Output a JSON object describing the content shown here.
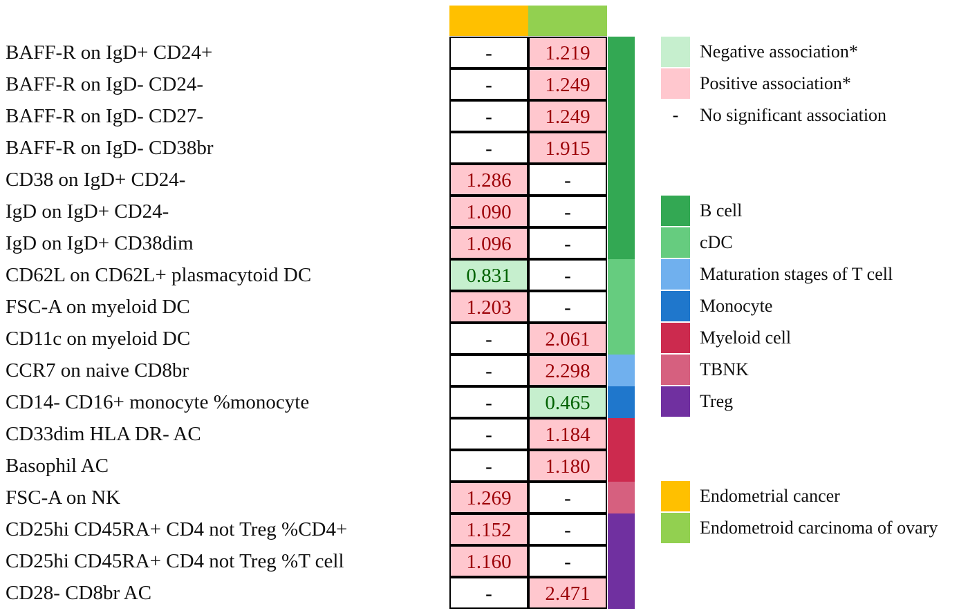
{
  "chart_data": {
    "type": "table",
    "title": "",
    "columns": [
      "Endometrial cancer",
      "Endometroid carcinoma of ovary"
    ],
    "column_colors": [
      "#ffc000",
      "#92d050"
    ],
    "rows": [
      {
        "label": "BAFF-R on IgD+ CD24+",
        "values": [
          "-",
          "1.219"
        ],
        "assoc": [
          "none",
          "pos"
        ],
        "category": "B cell"
      },
      {
        "label": "BAFF-R on IgD- CD24-",
        "values": [
          "-",
          "1.249"
        ],
        "assoc": [
          "none",
          "pos"
        ],
        "category": "B cell"
      },
      {
        "label": "BAFF-R on IgD- CD27-",
        "values": [
          "-",
          "1.249"
        ],
        "assoc": [
          "none",
          "pos"
        ],
        "category": "B cell"
      },
      {
        "label": "BAFF-R on IgD- CD38br",
        "values": [
          "-",
          "1.915"
        ],
        "assoc": [
          "none",
          "pos"
        ],
        "category": "B cell"
      },
      {
        "label": "CD38 on IgD+ CD24-",
        "values": [
          "1.286",
          "-"
        ],
        "assoc": [
          "pos",
          "none"
        ],
        "category": "B cell"
      },
      {
        "label": "IgD on IgD+ CD24-",
        "values": [
          "1.090",
          "-"
        ],
        "assoc": [
          "pos",
          "none"
        ],
        "category": "B cell"
      },
      {
        "label": "IgD on IgD+ CD38dim",
        "values": [
          "1.096",
          "-"
        ],
        "assoc": [
          "pos",
          "none"
        ],
        "category": "B cell"
      },
      {
        "label": "CD62L on CD62L+ plasmacytoid DC",
        "values": [
          "0.831",
          "-"
        ],
        "assoc": [
          "neg",
          "none"
        ],
        "category": "cDC"
      },
      {
        "label": "FSC-A on myeloid DC",
        "values": [
          "1.203",
          "-"
        ],
        "assoc": [
          "pos",
          "none"
        ],
        "category": "cDC"
      },
      {
        "label": "CD11c on myeloid DC",
        "values": [
          "-",
          "2.061"
        ],
        "assoc": [
          "none",
          "pos"
        ],
        "category": "cDC"
      },
      {
        "label": "CCR7 on naive CD8br",
        "values": [
          "-",
          "2.298"
        ],
        "assoc": [
          "none",
          "pos"
        ],
        "category": "Maturation stages of T cell"
      },
      {
        "label": "CD14- CD16+ monocyte %monocyte",
        "values": [
          "-",
          "0.465"
        ],
        "assoc": [
          "none",
          "neg"
        ],
        "category": "Monocyte"
      },
      {
        "label": "CD33dim HLA DR- AC",
        "values": [
          "-",
          "1.184"
        ],
        "assoc": [
          "none",
          "pos"
        ],
        "category": "Myeloid cell"
      },
      {
        "label": "Basophil AC",
        "values": [
          "-",
          "1.180"
        ],
        "assoc": [
          "none",
          "pos"
        ],
        "category": "Myeloid cell"
      },
      {
        "label": "FSC-A on NK",
        "values": [
          "1.269",
          "-"
        ],
        "assoc": [
          "pos",
          "none"
        ],
        "category": "TBNK"
      },
      {
        "label": "CD25hi CD45RA+ CD4 not Treg %CD4+",
        "values": [
          "1.152",
          "-"
        ],
        "assoc": [
          "pos",
          "none"
        ],
        "category": "Treg"
      },
      {
        "label": "CD25hi CD45RA+ CD4 not Treg %T cell",
        "values": [
          "1.160",
          "-"
        ],
        "assoc": [
          "pos",
          "none"
        ],
        "category": "Treg"
      },
      {
        "label": "CD28- CD8br AC",
        "values": [
          "-",
          "2.471"
        ],
        "assoc": [
          "none",
          "pos"
        ],
        "category": "Treg"
      }
    ],
    "association_legend": [
      {
        "key": "neg",
        "label": "Negative association*",
        "color": "#c6efce"
      },
      {
        "key": "pos",
        "label": "Positive association*",
        "color": "#ffc7ce"
      },
      {
        "key": "none",
        "label": "No significant association",
        "symbol": "-"
      }
    ],
    "categories": [
      {
        "name": "B cell",
        "color": "#33a853"
      },
      {
        "name": "cDC",
        "color": "#66cc7f"
      },
      {
        "name": "Maturation stages of T cell",
        "color": "#70b0ee"
      },
      {
        "name": "Monocyte",
        "color": "#1f77cc"
      },
      {
        "name": "Myeloid cell",
        "color": "#cc2a4e"
      },
      {
        "name": "TBNK",
        "color": "#d6607f"
      },
      {
        "name": "Treg",
        "color": "#7030a0"
      }
    ]
  }
}
